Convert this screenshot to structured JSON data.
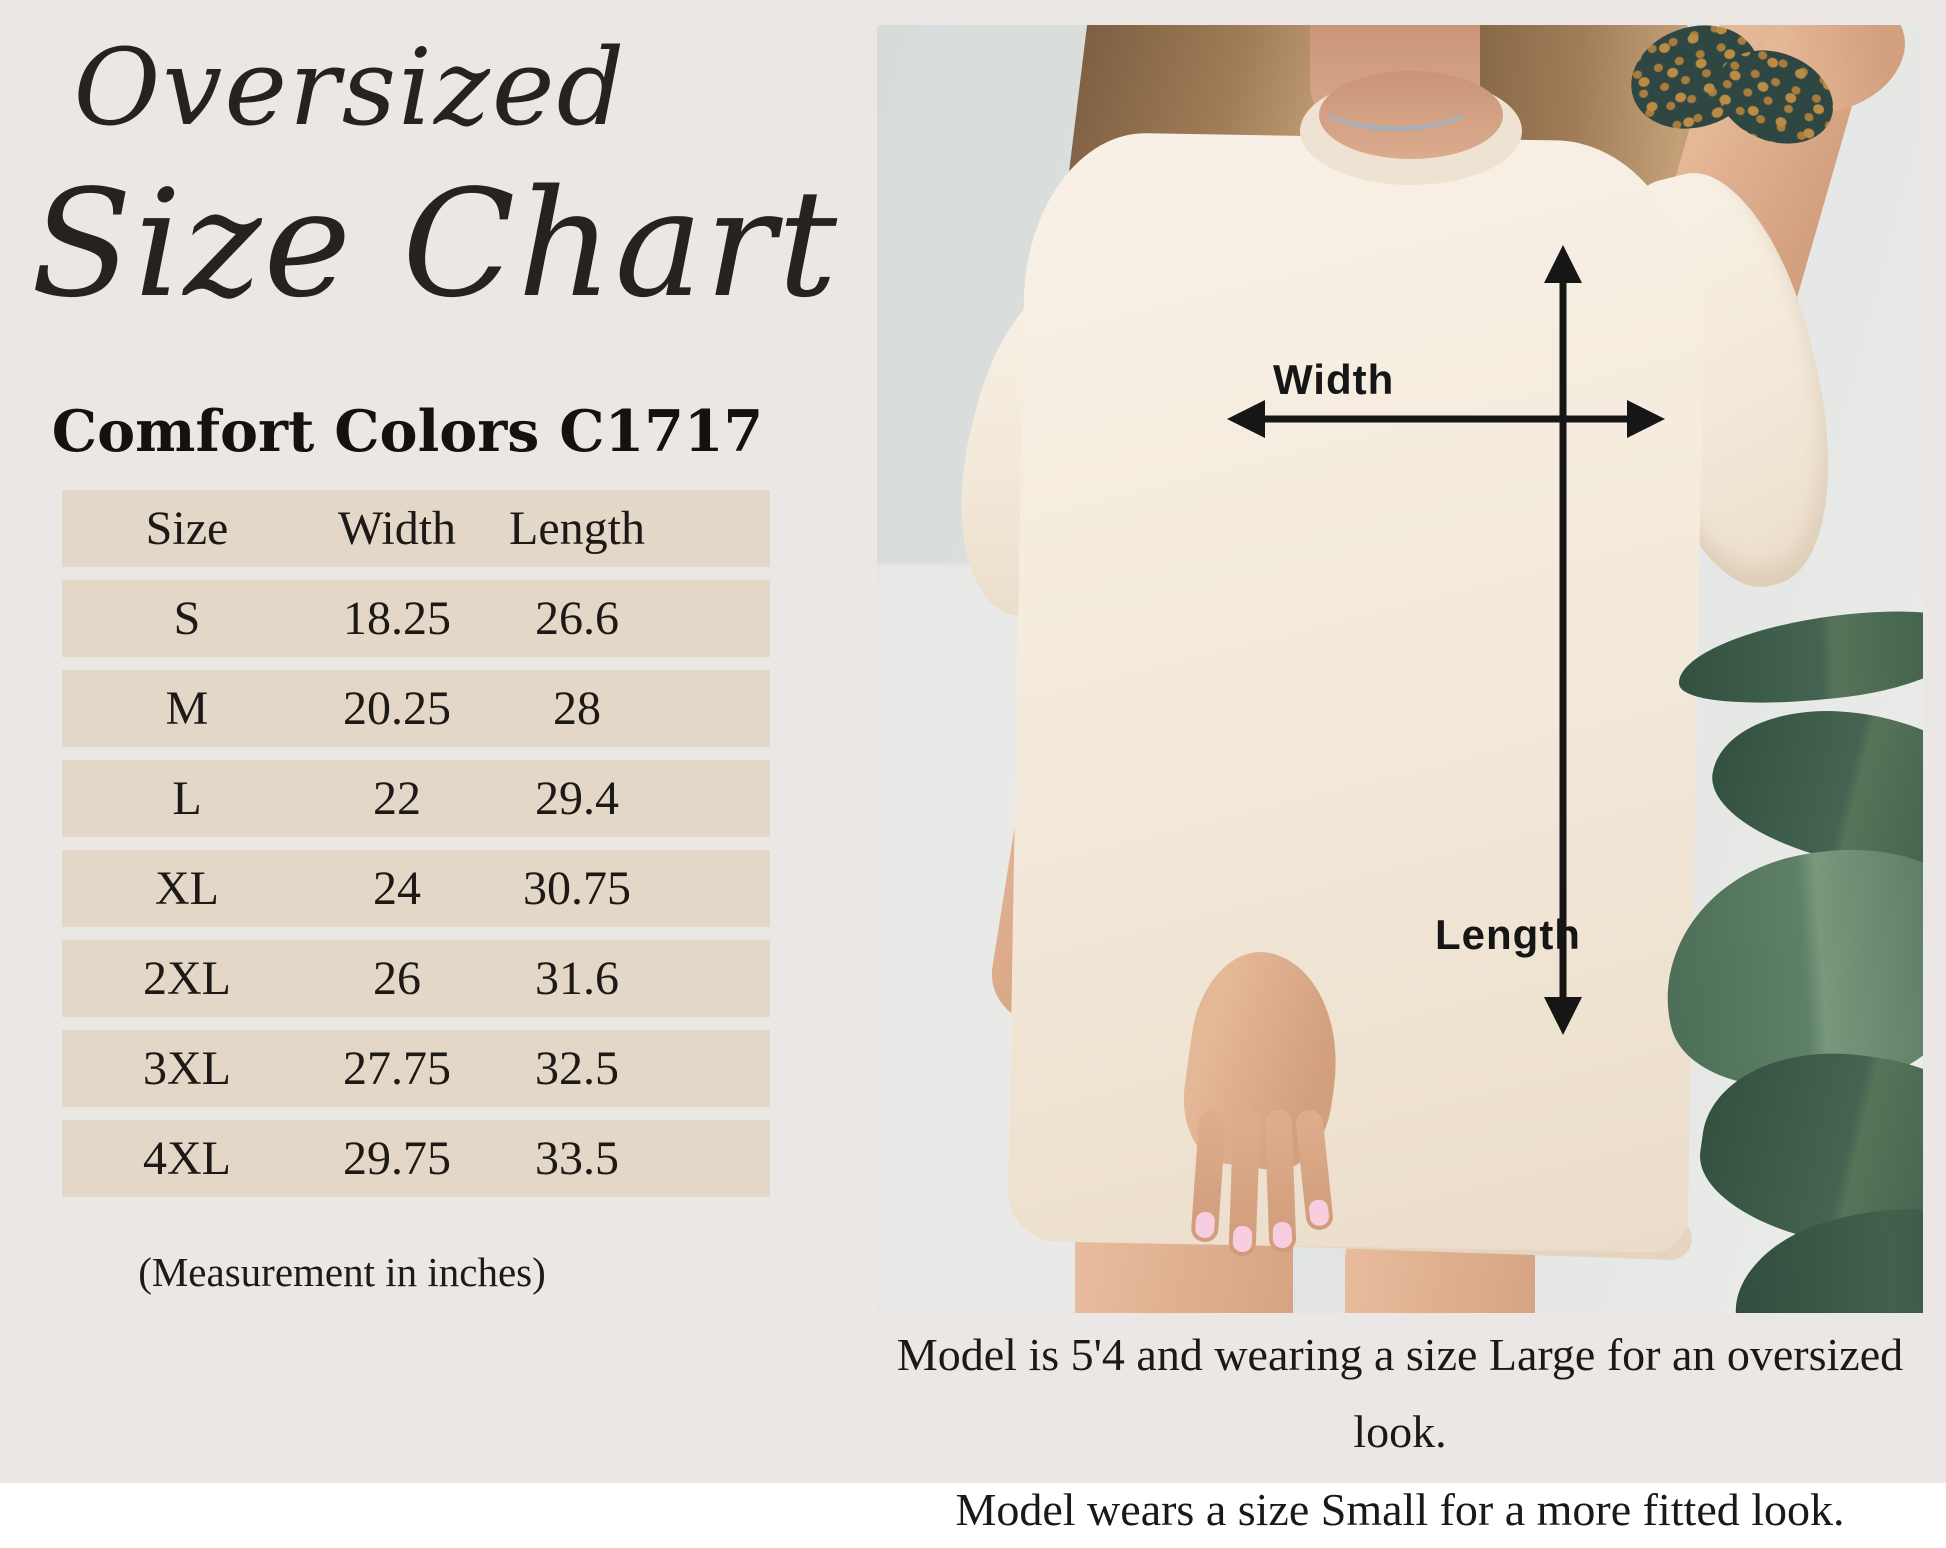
{
  "title": {
    "line1": "Oversized",
    "line2": "Size Chart"
  },
  "subtitle": "Comfort Colors C1717",
  "size_table": {
    "headers": [
      "Size",
      "Width",
      "Length"
    ],
    "rows": [
      {
        "size": "S",
        "width": "18.25",
        "length": "26.6"
      },
      {
        "size": "M",
        "width": "20.25",
        "length": "28"
      },
      {
        "size": "L",
        "width": "22",
        "length": "29.4"
      },
      {
        "size": "XL",
        "width": "24",
        "length": "30.75"
      },
      {
        "size": "2XL",
        "width": "26",
        "length": "31.6"
      },
      {
        "size": "3XL",
        "width": "27.75",
        "length": "32.5"
      },
      {
        "size": "4XL",
        "width": "29.75",
        "length": "33.5"
      }
    ],
    "note": "(Measurement in inches)"
  },
  "photo": {
    "width_label": "Width",
    "length_label": "Length"
  },
  "caption": {
    "line1": "Model is 5'4 and wearing a size Large for an oversized look.",
    "line2": "Model wears a size Small for a more fitted look."
  },
  "colors": {
    "page_background": "#ebe7e4",
    "table_stripe": "#e3d7c8",
    "text": "#1c1917",
    "tee": "#f3e9da",
    "leaf_green": "#446350",
    "arrow": "#161616"
  },
  "chart_data": {
    "type": "table",
    "title": "Comfort Colors C1717 Oversized Size Chart",
    "columns": [
      "Size",
      "Width",
      "Length"
    ],
    "rows": [
      [
        "S",
        18.25,
        26.6
      ],
      [
        "M",
        20.25,
        28
      ],
      [
        "L",
        22,
        29.4
      ],
      [
        "XL",
        24,
        30.75
      ],
      [
        "2XL",
        26,
        31.6
      ],
      [
        "3XL",
        27.75,
        32.5
      ],
      [
        "4XL",
        29.75,
        33.5
      ]
    ],
    "units": "inches"
  }
}
